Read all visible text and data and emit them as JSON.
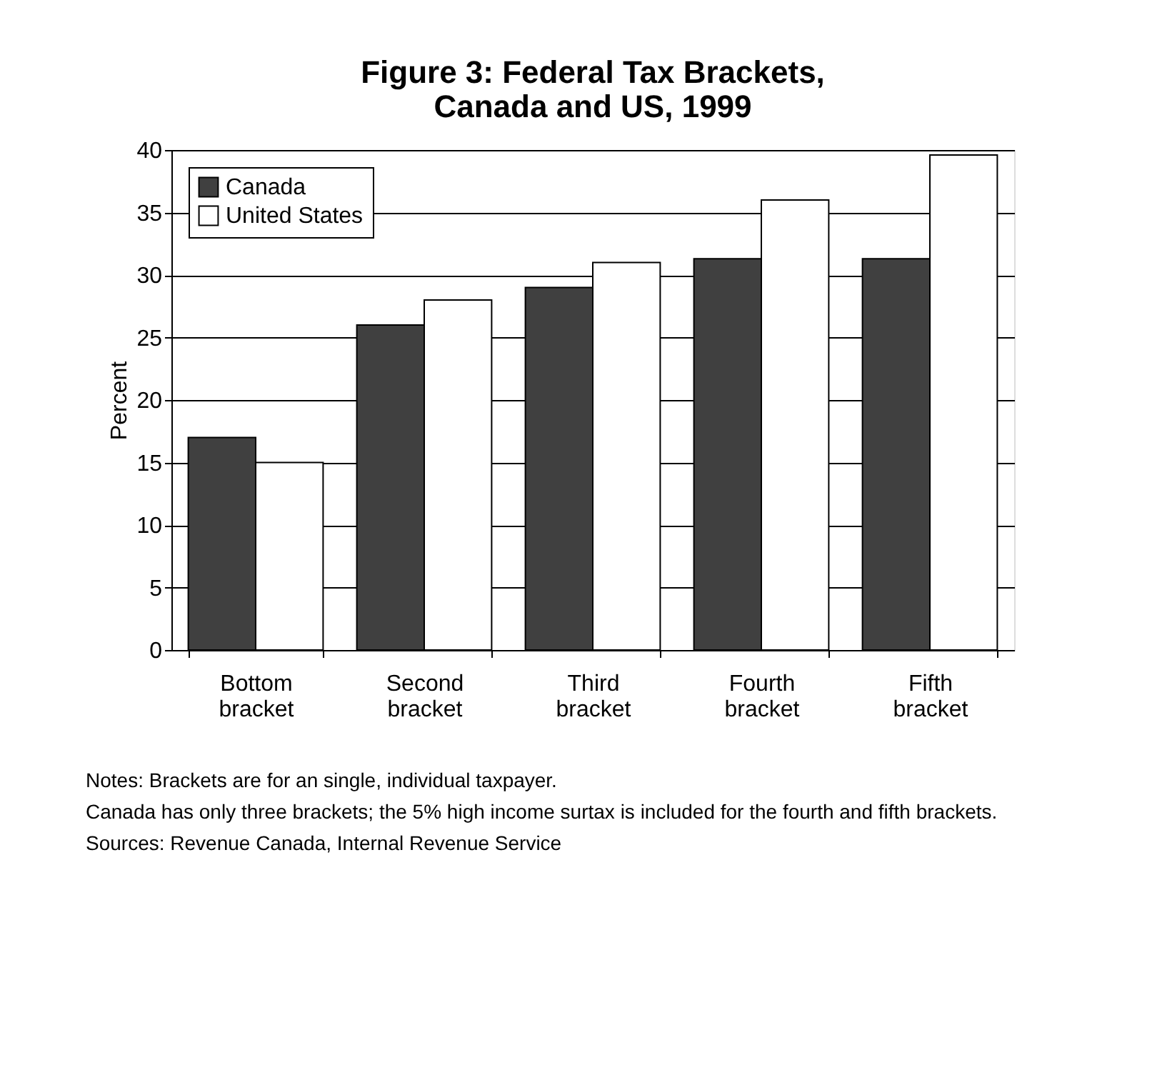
{
  "chart_data": {
    "type": "bar",
    "title": "Figure 3:  Federal Tax Brackets, Canada and US, 1999",
    "ylabel": "Percent",
    "categories": [
      "Bottom bracket",
      "Second bracket",
      "Third bracket",
      "Fourth bracket",
      "Fifth bracket"
    ],
    "series": [
      {
        "name": "Canada",
        "color": "#404040",
        "values": [
          17,
          26,
          29,
          31.3,
          31.3
        ]
      },
      {
        "name": "United States",
        "color": "#ffffff",
        "values": [
          15,
          28,
          31,
          36,
          39.6
        ]
      }
    ],
    "ylim": [
      0,
      40
    ],
    "yticks": [
      0,
      5,
      10,
      15,
      20,
      25,
      30,
      35,
      40
    ],
    "grid": "y",
    "legend": "top left",
    "annotations": [
      "Notes:  Brackets are for an single, individual taxpayer.",
      "Canada has only three brackets; the 5% high income surtax is included for the fourth and fifth brackets.",
      "Sources:  Revenue Canada, Internal Revenue Service"
    ]
  }
}
